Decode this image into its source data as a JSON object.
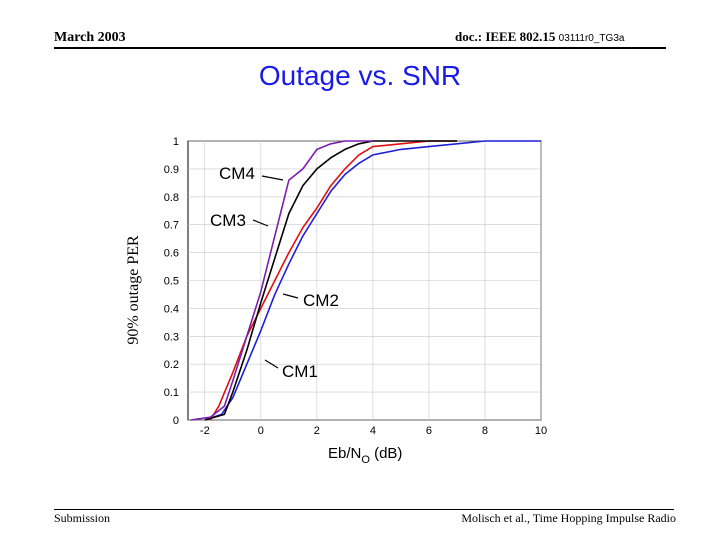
{
  "header": {
    "date": "March 2003",
    "doc_main": "doc.: IEEE 802.15",
    "doc_small": "03111r0_TG3a"
  },
  "footer": {
    "left": "Submission",
    "right": "Molisch et al., Time Hopping Impulse Radio"
  },
  "colors": {
    "title": "#1a1ae6",
    "CM1": "#1f1fd6",
    "CM2": "#e01010",
    "CM3": "#000000",
    "CM4": "#7a1fb0"
  },
  "chart_data": {
    "type": "line",
    "title": "Outage vs. SNR",
    "xlabel": "Eb/N",
    "xlabel_sub": "O",
    "xlabel_unit": " (dB)",
    "ylabel": "90% outage PER",
    "xlim": [
      -2.6,
      10
    ],
    "ylim": [
      0,
      1
    ],
    "xticks": [
      -2,
      0,
      2,
      4,
      6,
      8,
      10
    ],
    "yticks": [
      0,
      0.1,
      0.2,
      0.3,
      0.4,
      0.5,
      0.6,
      0.7,
      0.8,
      0.9,
      1
    ],
    "grid": true,
    "series": [
      {
        "name": "CM1",
        "x": [
          -2.0,
          -1.4,
          -1.0,
          -0.5,
          0.0,
          0.5,
          1.0,
          1.5,
          2.0,
          2.5,
          3.0,
          3.5,
          4.0,
          5.0,
          6.0,
          7.0,
          8.0,
          10.0
        ],
        "y": [
          0.0,
          0.02,
          0.08,
          0.2,
          0.32,
          0.45,
          0.56,
          0.66,
          0.74,
          0.82,
          0.88,
          0.92,
          0.95,
          0.97,
          0.98,
          0.99,
          1.0,
          1.0
        ]
      },
      {
        "name": "CM2",
        "x": [
          -1.8,
          -1.5,
          -1.0,
          -0.5,
          0.0,
          0.5,
          1.0,
          1.5,
          2.0,
          2.5,
          3.0,
          3.5,
          4.0,
          5.0,
          6.0,
          7.0
        ],
        "y": [
          0.0,
          0.05,
          0.17,
          0.3,
          0.4,
          0.5,
          0.6,
          0.69,
          0.76,
          0.84,
          0.9,
          0.95,
          0.98,
          0.99,
          1.0,
          1.0
        ]
      },
      {
        "name": "CM3",
        "x": [
          -2.0,
          -1.3,
          -1.0,
          -0.5,
          0.0,
          0.5,
          1.0,
          1.5,
          2.0,
          2.5,
          3.0,
          3.5,
          4.0,
          5.0,
          6.0,
          7.0
        ],
        "y": [
          0.0,
          0.02,
          0.1,
          0.25,
          0.42,
          0.58,
          0.74,
          0.84,
          0.9,
          0.94,
          0.97,
          0.99,
          1.0,
          1.0,
          1.0,
          1.0
        ]
      },
      {
        "name": "CM4",
        "x": [
          -2.5,
          -1.8,
          -1.3,
          -1.0,
          -0.5,
          0.0,
          0.5,
          1.0,
          1.5,
          2.0,
          2.5,
          3.0,
          4.0
        ],
        "y": [
          0.0,
          0.01,
          0.05,
          0.14,
          0.3,
          0.46,
          0.66,
          0.86,
          0.9,
          0.97,
          0.99,
          1.0,
          1.0
        ]
      }
    ],
    "annotations": [
      {
        "text": "CM4",
        "series": "CM4"
      },
      {
        "text": "CM3",
        "series": "CM3"
      },
      {
        "text": "CM2",
        "series": "CM2"
      },
      {
        "text": "CM1",
        "series": "CM1"
      }
    ]
  }
}
